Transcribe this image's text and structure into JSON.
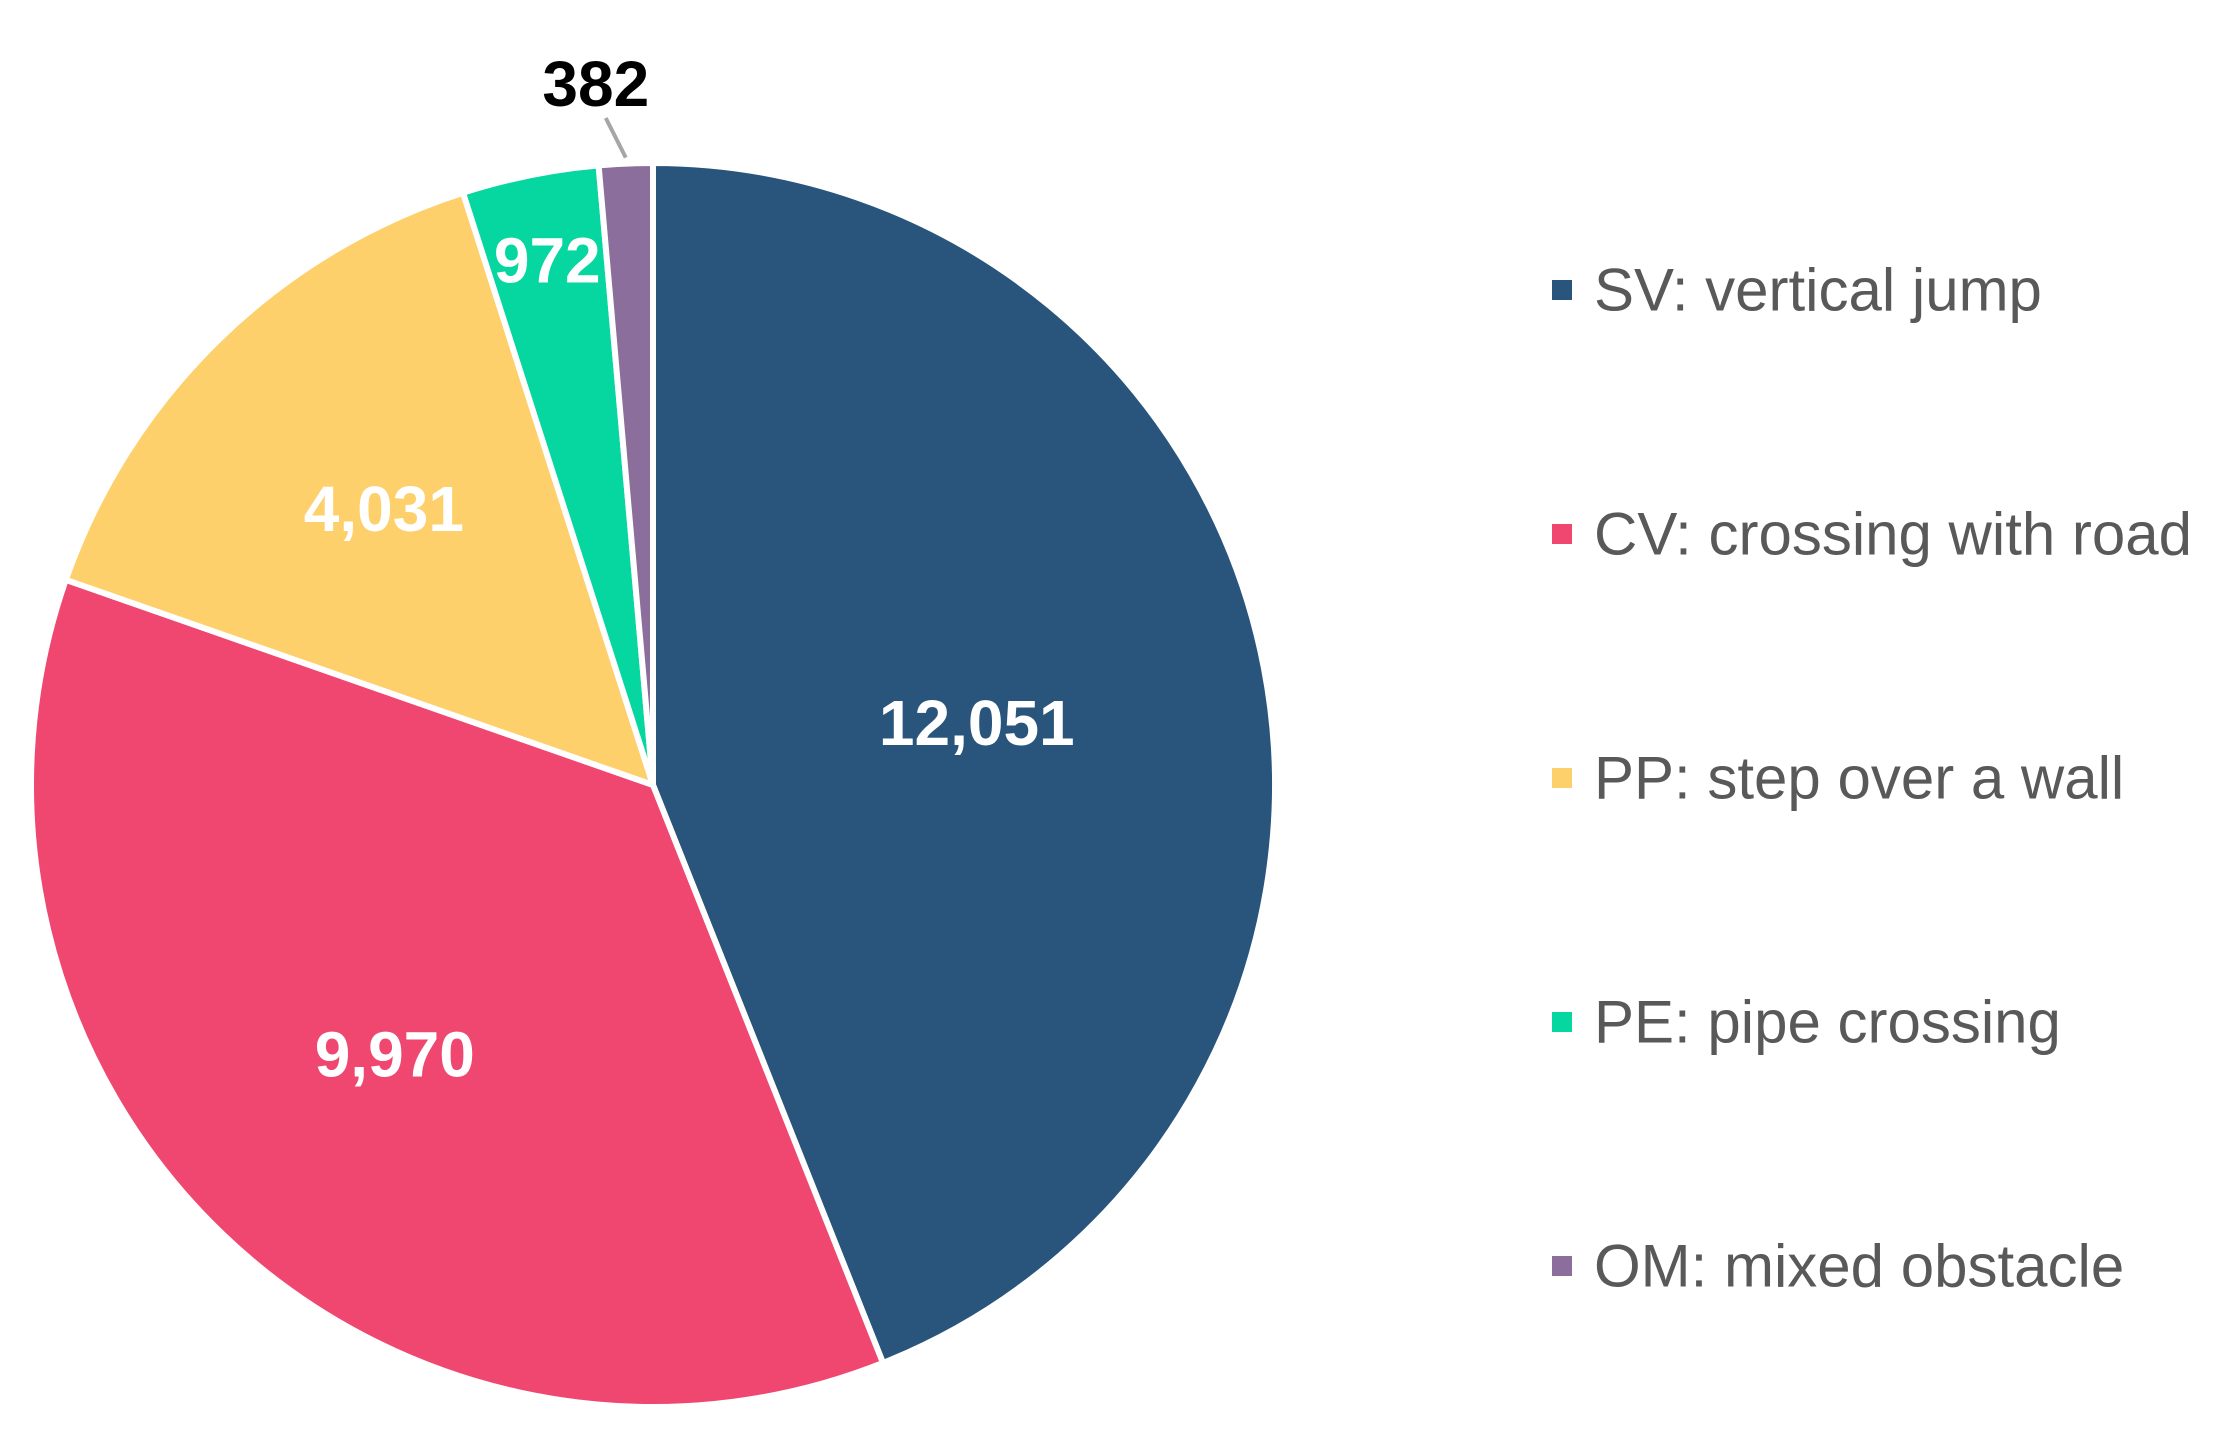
{
  "chart_data": {
    "type": "pie",
    "categories": [
      "SV: vertical jump",
      "CV: crossing with road",
      "PP: step over a wall",
      "PE: pipe crossing",
      "OM: mixed obstacle"
    ],
    "values": [
      12051,
      9970,
      4031,
      972,
      382
    ],
    "value_labels": [
      "12,051",
      "9,970",
      "4,031",
      "972",
      "382"
    ],
    "colors": [
      "#29557c",
      "#ef4770",
      "#fdd06b",
      "#06d6a0",
      "#8b6e9c"
    ],
    "start_angle_degrees": 0,
    "direction": "clockwise",
    "title": "",
    "legend_position": "right"
  }
}
